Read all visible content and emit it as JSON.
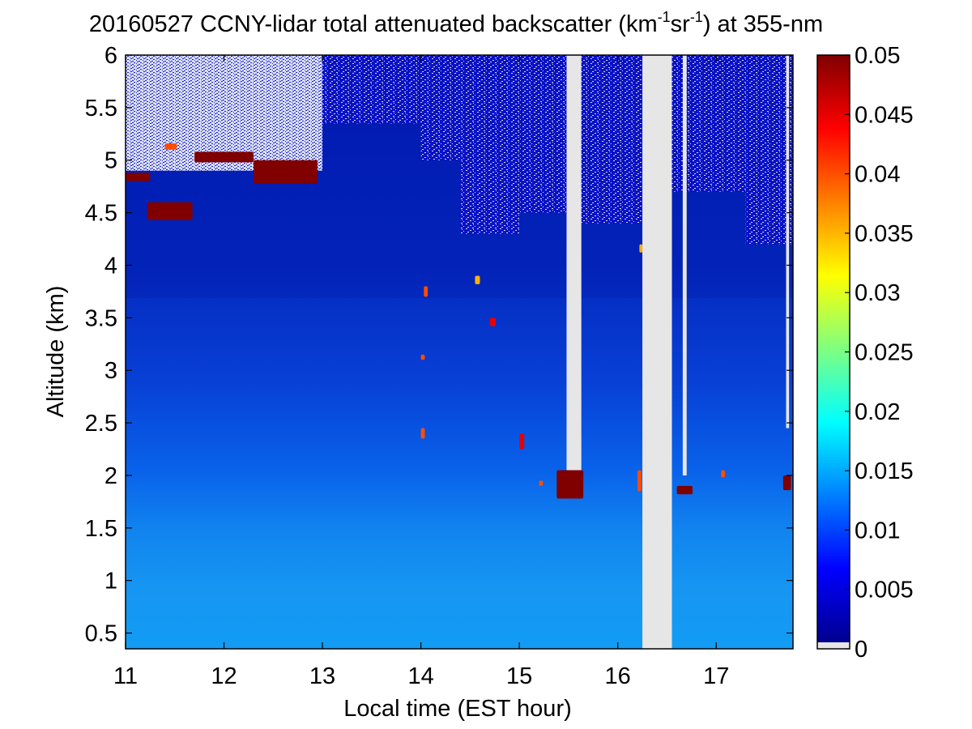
{
  "chart_data": {
    "type": "heatmap",
    "title": {
      "prefix": "20160527 CCNY-lidar total attenuated backscatter (km",
      "sup1": "-1",
      "mid": "sr",
      "sup2": "-1",
      "suffix": ") at 355-nm"
    },
    "xlabel": "Local time (EST hour)",
    "ylabel": "Altitude (km)",
    "xlim": [
      11,
      17.78
    ],
    "ylim": [
      0.35,
      6
    ],
    "x_ticks": [
      "11",
      "12",
      "13",
      "14",
      "15",
      "16",
      "17"
    ],
    "y_ticks": [
      "0.5",
      "1",
      "1.5",
      "2",
      "2.5",
      "3",
      "3.5",
      "4",
      "4.5",
      "5",
      "5.5",
      "6"
    ],
    "colorbar": {
      "min": 0,
      "max": 0.05,
      "ticks": [
        "0",
        "0.005",
        "0.01",
        "0.015",
        "0.02",
        "0.025",
        "0.03",
        "0.035",
        "0.04",
        "0.045",
        "0.05"
      ],
      "colormap": "jet",
      "missing_color": "#e6e6e6"
    },
    "missing_data": [
      {
        "x_start": 16.25,
        "x_end": 16.55,
        "y_bottom": 0.35
      },
      {
        "x_start": 15.48,
        "x_end": 15.63,
        "y_bottom": 2.05
      },
      {
        "x_start": 16.66,
        "x_end": 16.7,
        "y_bottom": 2.0
      },
      {
        "x_start": 17.71,
        "x_end": 17.74,
        "y_bottom": 2.45
      }
    ],
    "features": [
      {
        "type": "cloud",
        "x_start": 11.0,
        "x_end": 11.25,
        "y_top": 4.88,
        "y_bottom": 4.8,
        "backscatter": 0.05
      },
      {
        "type": "cloud",
        "x_start": 11.7,
        "x_end": 12.3,
        "y_top": 5.08,
        "y_bottom": 4.98,
        "backscatter": 0.05
      },
      {
        "type": "cloud",
        "x_start": 12.3,
        "x_end": 12.95,
        "y_top": 5.0,
        "y_bottom": 4.78,
        "backscatter": 0.05
      },
      {
        "type": "cloud",
        "x_start": 11.22,
        "x_end": 11.68,
        "y_top": 4.6,
        "y_bottom": 4.43,
        "backscatter": 0.05
      },
      {
        "type": "cloud",
        "x_start": 11.4,
        "x_end": 11.52,
        "y_top": 5.16,
        "y_bottom": 5.1,
        "backscatter": 0.04
      },
      {
        "type": "cloud",
        "x_start": 15.38,
        "x_end": 15.65,
        "y_top": 2.05,
        "y_bottom": 1.78,
        "backscatter": 0.05
      },
      {
        "type": "cloud",
        "x_start": 16.6,
        "x_end": 16.76,
        "y_top": 1.9,
        "y_bottom": 1.82,
        "backscatter": 0.05
      },
      {
        "type": "cloud",
        "x_start": 17.68,
        "x_end": 17.76,
        "y_top": 2.0,
        "y_bottom": 1.86,
        "backscatter": 0.05
      },
      {
        "type": "cloud",
        "x_start": 15.0,
        "x_end": 15.05,
        "y_top": 2.4,
        "y_bottom": 2.25,
        "backscatter": 0.045
      },
      {
        "type": "cloud",
        "x_start": 14.0,
        "x_end": 14.04,
        "y_top": 2.45,
        "y_bottom": 2.35,
        "backscatter": 0.04
      },
      {
        "type": "cloud",
        "x_start": 14.03,
        "x_end": 14.07,
        "y_top": 3.8,
        "y_bottom": 3.7,
        "backscatter": 0.04
      },
      {
        "type": "cloud",
        "x_start": 14.7,
        "x_end": 14.76,
        "y_top": 3.5,
        "y_bottom": 3.42,
        "backscatter": 0.045
      },
      {
        "type": "cloud",
        "x_start": 14.55,
        "x_end": 14.6,
        "y_top": 3.9,
        "y_bottom": 3.82,
        "backscatter": 0.035
      },
      {
        "type": "cloud",
        "x_start": 17.05,
        "x_end": 17.09,
        "y_top": 2.05,
        "y_bottom": 1.98,
        "backscatter": 0.04
      },
      {
        "type": "cloud",
        "x_start": 15.2,
        "x_end": 15.24,
        "y_top": 1.95,
        "y_bottom": 1.9,
        "backscatter": 0.04
      },
      {
        "type": "cloud",
        "x_start": 14.0,
        "x_end": 14.04,
        "y_top": 3.15,
        "y_bottom": 3.1,
        "backscatter": 0.04
      },
      {
        "type": "cloud",
        "x_start": 16.22,
        "x_end": 16.25,
        "y_top": 4.2,
        "y_bottom": 4.12,
        "backscatter": 0.035
      },
      {
        "type": "cloud",
        "x_start": 16.2,
        "x_end": 16.24,
        "y_top": 2.05,
        "y_bottom": 1.85,
        "backscatter": 0.04
      }
    ]
  }
}
